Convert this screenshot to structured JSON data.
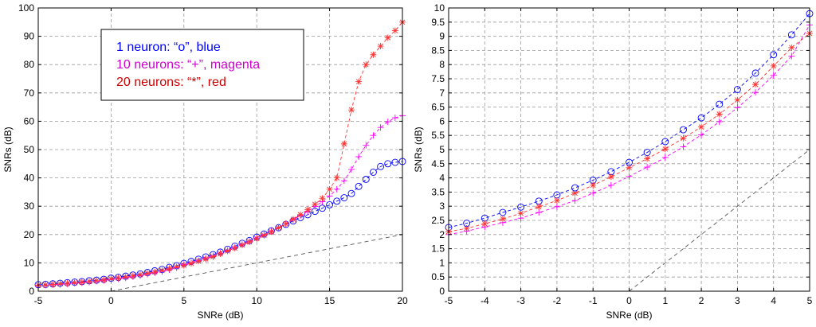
{
  "chart_data": [
    {
      "type": "line",
      "xlabel": "SNRe (dB)",
      "ylabel": "SNRs (dB)",
      "xlim": [
        -5,
        20
      ],
      "ylim": [
        0,
        100
      ],
      "xticks": [
        -5,
        0,
        5,
        10,
        15,
        20
      ],
      "yticks": [
        0,
        10,
        20,
        30,
        40,
        50,
        60,
        70,
        80,
        90,
        100
      ],
      "grid": true,
      "legend": {
        "placement": "top-left",
        "entries": [
          {
            "text": "1 neuron: “o”, blue",
            "color": "#0000ff"
          },
          {
            "text": "10 neurons: “+”, magenta",
            "color": "#cc00cc"
          },
          {
            "text": "20 neurons: “*”, red",
            "color": "#cc0000"
          }
        ]
      },
      "x": [
        -5,
        -4.5,
        -4,
        -3.5,
        -3,
        -2.5,
        -2,
        -1.5,
        -1,
        -0.5,
        0,
        0.5,
        1,
        1.5,
        2,
        2.5,
        3,
        3.5,
        4,
        4.5,
        5,
        5.5,
        6,
        6.5,
        7,
        7.5,
        8,
        8.5,
        9,
        9.5,
        10,
        10.5,
        11,
        11.5,
        12,
        12.5,
        13,
        13.5,
        14,
        14.5,
        15,
        15.5,
        16,
        16.5,
        17,
        17.5,
        18,
        18.5,
        19,
        19.5,
        20
      ],
      "series": [
        {
          "color": "#0000ff",
          "marker": "o",
          "values": [
            2.3,
            2.4,
            2.6,
            2.8,
            3.0,
            3.2,
            3.4,
            3.7,
            3.9,
            4.2,
            4.6,
            4.9,
            5.3,
            5.7,
            6.1,
            6.6,
            7.2,
            7.7,
            8.4,
            9.0,
            9.8,
            10.5,
            11.3,
            12.1,
            12.9,
            13.8,
            14.8,
            15.9,
            16.9,
            17.9,
            19.1,
            20.2,
            21.3,
            22.4,
            23.6,
            24.8,
            26.0,
            27.0,
            28.2,
            29.3,
            30.5,
            31.8,
            33.0,
            34.5,
            37.0,
            39.5,
            42.0,
            44.0,
            45.0,
            45.5,
            45.8
          ]
        },
        {
          "color": "#ff00ff",
          "marker": "+",
          "values": [
            2.0,
            2.1,
            2.3,
            2.4,
            2.6,
            2.8,
            3.0,
            3.2,
            3.5,
            3.8,
            4.1,
            4.4,
            4.7,
            5.1,
            5.5,
            6.0,
            6.5,
            7.0,
            7.6,
            8.3,
            9.4,
            10.0,
            10.8,
            11.6,
            12.5,
            13.4,
            14.4,
            15.4,
            16.5,
            17.6,
            18.8,
            20.0,
            21.2,
            22.5,
            23.8,
            25.2,
            26.7,
            28.2,
            29.9,
            31.6,
            33.6,
            36.0,
            39.0,
            43.0,
            47.5,
            51.5,
            55.0,
            57.8,
            59.8,
            61.2,
            62.0
          ]
        },
        {
          "color": "#ff3333",
          "marker": "*",
          "values": [
            2.1,
            2.2,
            2.4,
            2.6,
            2.8,
            3.0,
            3.2,
            3.4,
            3.7,
            4.0,
            4.4,
            4.7,
            5.0,
            5.4,
            5.8,
            6.3,
            6.8,
            7.3,
            8.0,
            8.6,
            9.1,
            9.8,
            10.6,
            11.4,
            12.2,
            13.2,
            14.2,
            15.2,
            16.3,
            17.4,
            18.6,
            19.7,
            21.0,
            22.4,
            23.8,
            25.4,
            27.0,
            28.8,
            30.7,
            32.8,
            36.0,
            40.0,
            52.0,
            64.0,
            74.0,
            80.0,
            83.5,
            86.5,
            89.5,
            92.0,
            95.0
          ]
        },
        {
          "color": "#555555",
          "marker": "none",
          "dashed": true,
          "x": [
            0,
            20
          ],
          "values": [
            0,
            20
          ]
        }
      ]
    },
    {
      "type": "line",
      "xlabel": "SNRe (dB)",
      "ylabel": "SNRs (dB)",
      "xlim": [
        -5,
        5
      ],
      "ylim": [
        0,
        10
      ],
      "xticks": [
        -5,
        -4,
        -3,
        -2,
        -1,
        0,
        1,
        2,
        3,
        4,
        5
      ],
      "yticks": [
        0,
        0.5,
        1,
        1.5,
        2,
        2.5,
        3,
        3.5,
        4,
        4.5,
        5,
        5.5,
        6,
        6.5,
        7,
        7.5,
        8,
        8.5,
        9,
        9.5,
        10
      ],
      "grid": true,
      "x": [
        -5,
        -4.5,
        -4,
        -3.5,
        -3,
        -2.5,
        -2,
        -1.5,
        -1,
        -0.5,
        0,
        0.5,
        1,
        1.5,
        2,
        2.5,
        3,
        3.5,
        4,
        4.5,
        5
      ],
      "series": [
        {
          "color": "#0000ff",
          "marker": "o",
          "values": [
            2.25,
            2.4,
            2.58,
            2.78,
            2.97,
            3.18,
            3.4,
            3.65,
            3.92,
            4.22,
            4.55,
            4.9,
            5.28,
            5.7,
            6.12,
            6.6,
            7.12,
            7.7,
            8.35,
            9.05,
            9.8
          ]
        },
        {
          "color": "#ff00ff",
          "marker": "+",
          "values": [
            2.0,
            2.12,
            2.27,
            2.42,
            2.58,
            2.78,
            2.98,
            3.2,
            3.46,
            3.74,
            4.05,
            4.38,
            4.72,
            5.1,
            5.52,
            5.98,
            6.48,
            7.02,
            7.62,
            8.3,
            9.4
          ]
        },
        {
          "color": "#ff3333",
          "marker": "*",
          "values": [
            2.1,
            2.22,
            2.38,
            2.55,
            2.75,
            2.98,
            3.2,
            3.46,
            3.74,
            4.04,
            4.36,
            4.68,
            5.02,
            5.4,
            5.8,
            6.25,
            6.75,
            7.3,
            7.95,
            8.6,
            9.1
          ]
        },
        {
          "color": "#555555",
          "marker": "none",
          "dashed": true,
          "x": [
            0,
            5
          ],
          "values": [
            0,
            5
          ]
        }
      ]
    }
  ]
}
